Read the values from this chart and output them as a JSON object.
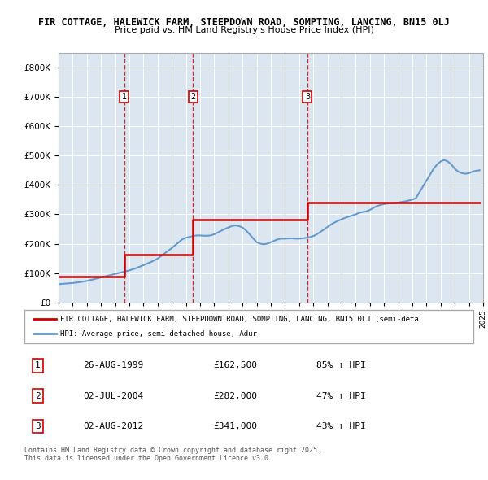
{
  "title_line1": "FIR COTTAGE, HALEWICK FARM, STEEPDOWN ROAD, SOMPTING, LANCING, BN15 0LJ",
  "title_line2": "Price paid vs. HM Land Registry's House Price Index (HPI)",
  "ylim": [
    0,
    850000
  ],
  "yticks": [
    0,
    100000,
    200000,
    300000,
    400000,
    500000,
    600000,
    700000,
    800000
  ],
  "ytick_labels": [
    "£0",
    "£100K",
    "£200K",
    "£300K",
    "£400K",
    "£500K",
    "£600K",
    "£700K",
    "£800K"
  ],
  "background_color": "#dce6f1",
  "plot_bg_color": "#dce6f1",
  "sale_color": "#cc0000",
  "hpi_color": "#6699cc",
  "sale_dates": [
    "1999-08-26",
    "2004-07-02",
    "2012-08-02"
  ],
  "sale_prices": [
    162500,
    282000,
    341000
  ],
  "sale_labels": [
    "1",
    "2",
    "3"
  ],
  "legend_sale_label": "FIR COTTAGE, HALEWICK FARM, STEEPDOWN ROAD, SOMPTING, LANCING, BN15 0LJ (semi-deta",
  "legend_hpi_label": "HPI: Average price, semi-detached house, Adur",
  "table_entries": [
    {
      "num": "1",
      "date": "26-AUG-1999",
      "price": "£162,500",
      "change": "85% ↑ HPI"
    },
    {
      "num": "2",
      "date": "02-JUL-2004",
      "price": "£282,000",
      "change": "47% ↑ HPI"
    },
    {
      "num": "3",
      "date": "02-AUG-2012",
      "price": "£341,000",
      "change": "43% ↑ HPI"
    }
  ],
  "footer_text": "Contains HM Land Registry data © Crown copyright and database right 2025.\nThis data is licensed under the Open Government Licence v3.0.",
  "hpi_x": [
    1995.0,
    1995.25,
    1995.5,
    1995.75,
    1996.0,
    1996.25,
    1996.5,
    1996.75,
    1997.0,
    1997.25,
    1997.5,
    1997.75,
    1998.0,
    1998.25,
    1998.5,
    1998.75,
    1999.0,
    1999.25,
    1999.5,
    1999.75,
    2000.0,
    2000.25,
    2000.5,
    2000.75,
    2001.0,
    2001.25,
    2001.5,
    2001.75,
    2002.0,
    2002.25,
    2002.5,
    2002.75,
    2003.0,
    2003.25,
    2003.5,
    2003.75,
    2004.0,
    2004.25,
    2004.5,
    2004.75,
    2005.0,
    2005.25,
    2005.5,
    2005.75,
    2006.0,
    2006.25,
    2006.5,
    2006.75,
    2007.0,
    2007.25,
    2007.5,
    2007.75,
    2008.0,
    2008.25,
    2008.5,
    2008.75,
    2009.0,
    2009.25,
    2009.5,
    2009.75,
    2010.0,
    2010.25,
    2010.5,
    2010.75,
    2011.0,
    2011.25,
    2011.5,
    2011.75,
    2012.0,
    2012.25,
    2012.5,
    2012.75,
    2013.0,
    2013.25,
    2013.5,
    2013.75,
    2014.0,
    2014.25,
    2014.5,
    2014.75,
    2015.0,
    2015.25,
    2015.5,
    2015.75,
    2016.0,
    2016.25,
    2016.5,
    2016.75,
    2017.0,
    2017.25,
    2017.5,
    2017.75,
    2018.0,
    2018.25,
    2018.5,
    2018.75,
    2019.0,
    2019.25,
    2019.5,
    2019.75,
    2020.0,
    2020.25,
    2020.5,
    2020.75,
    2021.0,
    2021.25,
    2021.5,
    2021.75,
    2022.0,
    2022.25,
    2022.5,
    2022.75,
    2023.0,
    2023.25,
    2023.5,
    2023.75,
    2024.0,
    2024.25,
    2024.5,
    2024.75
  ],
  "hpi_y": [
    62000,
    63000,
    64000,
    65000,
    66000,
    67500,
    69000,
    71000,
    73000,
    76000,
    79000,
    82000,
    85000,
    88000,
    91000,
    94000,
    97000,
    100000,
    103000,
    106000,
    109000,
    113000,
    117000,
    122000,
    127000,
    132000,
    137000,
    143000,
    149000,
    158000,
    167000,
    176000,
    185000,
    195000,
    205000,
    215000,
    220000,
    223000,
    226000,
    228000,
    228000,
    227000,
    227000,
    228000,
    232000,
    238000,
    244000,
    250000,
    255000,
    260000,
    262000,
    260000,
    255000,
    245000,
    232000,
    218000,
    205000,
    200000,
    198000,
    200000,
    205000,
    210000,
    215000,
    217000,
    217000,
    218000,
    218000,
    217000,
    217000,
    218000,
    220000,
    222000,
    226000,
    232000,
    240000,
    248000,
    257000,
    265000,
    272000,
    278000,
    283000,
    288000,
    292000,
    296000,
    300000,
    305000,
    308000,
    310000,
    315000,
    322000,
    328000,
    332000,
    335000,
    337000,
    338000,
    338000,
    340000,
    342000,
    344000,
    347000,
    350000,
    355000,
    375000,
    395000,
    415000,
    435000,
    455000,
    470000,
    480000,
    485000,
    480000,
    470000,
    455000,
    445000,
    440000,
    438000,
    440000,
    445000,
    448000,
    450000
  ],
  "sale_line_x": [
    1995.0,
    1999.65,
    1999.65,
    1999.65,
    2004.5,
    2004.5,
    2004.5,
    2012.58,
    2012.58,
    2012.58,
    2024.75
  ],
  "sale_line_y": [
    87000,
    87000,
    162500,
    162500,
    162500,
    282000,
    282000,
    282000,
    341000,
    341000,
    341000
  ]
}
